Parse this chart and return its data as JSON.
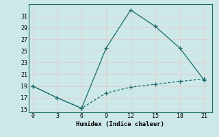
{
  "xlabel": "Humidex (Indice chaleur)",
  "ylabel": "",
  "background_color": "#cce8e8",
  "grid_color": "#e8c8c8",
  "line_color": "#1a6b6b",
  "x_solid": [
    0,
    3,
    6,
    9,
    12,
    15,
    18,
    21
  ],
  "y_solid": [
    19,
    17,
    15.2,
    25.5,
    32,
    29.2,
    25.5,
    20
  ],
  "x_dashed": [
    0,
    3,
    6,
    9,
    12,
    15,
    18,
    21
  ],
  "y_dashed": [
    19,
    17,
    15.2,
    17.8,
    18.8,
    19.3,
    19.8,
    20.2
  ],
  "xlim": [
    -0.5,
    22
  ],
  "ylim": [
    14.5,
    33
  ],
  "xticks": [
    0,
    3,
    6,
    9,
    12,
    15,
    18,
    21
  ],
  "yticks": [
    15,
    17,
    19,
    21,
    23,
    25,
    27,
    29,
    31
  ],
  "marker": "+",
  "marker_size": 4,
  "linewidth": 0.9
}
